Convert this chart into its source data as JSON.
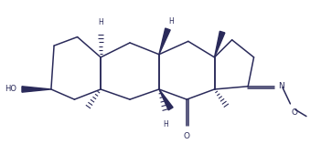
{
  "background": "#ffffff",
  "line_color": "#2a2a5a",
  "text_color": "#2a2a5a",
  "linewidth": 1.1,
  "figsize": [
    3.51,
    1.8
  ],
  "dpi": 100,
  "xlim": [
    -0.3,
    10.5
  ],
  "ylim": [
    0.2,
    5.8
  ]
}
